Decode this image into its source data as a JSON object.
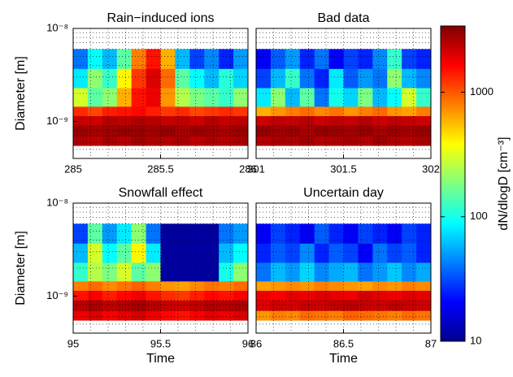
{
  "chart_data": [
    {
      "type": "heatmap",
      "title": "Rain−induced ions",
      "ylabel": "Diameter [m]",
      "xlim": [
        285,
        286
      ],
      "xticks": [
        285,
        285.5,
        286
      ],
      "ylim": [
        4e-10,
        1e-08
      ],
      "yscale": "log",
      "yticks": [
        {
          "value": 1e-08,
          "label": "10⁻⁸"
        },
        {
          "value": 1e-09,
          "label": "10⁻⁹"
        }
      ],
      "grid": true,
      "y_edges": [
        5.5e-10,
        7e-10,
        9e-10,
        1.15e-09,
        1.45e-09,
        2.3e-09,
        3.7e-09,
        6e-09
      ],
      "values": [
        [
          2600,
          2400,
          2700,
          2500,
          2800,
          2600,
          2500,
          2700,
          2400,
          2600,
          2500,
          2700
        ],
        [
          2900,
          2700,
          2800,
          3000,
          2900,
          2800,
          3000,
          2700,
          2900,
          2800,
          2700,
          2900
        ],
        [
          2300,
          2200,
          2500,
          2400,
          2600,
          2500,
          2300,
          2400,
          2200,
          2500,
          2300,
          2400
        ],
        [
          1300,
          1100,
          1400,
          1500,
          1600,
          1400,
          1200,
          1300,
          1100,
          1200,
          1300,
          1200
        ],
        [
          300,
          150,
          200,
          600,
          1500,
          1800,
          700,
          250,
          180,
          150,
          120,
          200
        ],
        [
          80,
          200,
          120,
          400,
          1200,
          2000,
          900,
          150,
          90,
          60,
          110,
          70
        ],
        [
          40,
          90,
          60,
          150,
          800,
          1500,
          600,
          60,
          30,
          45,
          25,
          50
        ]
      ]
    },
    {
      "type": "heatmap",
      "title": "Bad data",
      "xlim": [
        301,
        302
      ],
      "xticks": [
        301,
        301.5,
        302
      ],
      "ylim": [
        4e-10,
        1e-08
      ],
      "yscale": "log",
      "grid": true,
      "y_edges": [
        5.5e-10,
        7e-10,
        9e-10,
        1.15e-09,
        1.45e-09,
        2.3e-09,
        3.7e-09,
        6e-09
      ],
      "values": [
        [
          2500,
          2700,
          2600,
          2800,
          2500,
          2600,
          2700,
          2500,
          2800,
          2600,
          2500,
          2700
        ],
        [
          3000,
          2800,
          2900,
          2700,
          3000,
          2900,
          2800,
          3000,
          2700,
          2900,
          2800,
          3000
        ],
        [
          2200,
          2400,
          2300,
          2500,
          2200,
          2400,
          2300,
          2500,
          2200,
          2400,
          2300,
          2200
        ],
        [
          600,
          700,
          800,
          900,
          750,
          850,
          700,
          800,
          900,
          700,
          650,
          800
        ],
        [
          80,
          200,
          60,
          150,
          40,
          100,
          70,
          180,
          60,
          90,
          300,
          120
        ],
        [
          30,
          60,
          120,
          40,
          25,
          80,
          35,
          50,
          40,
          200,
          60,
          45
        ],
        [
          20,
          35,
          50,
          25,
          40,
          20,
          30,
          25,
          45,
          120,
          30,
          25
        ]
      ]
    },
    {
      "type": "heatmap",
      "title": "Snowfall effect",
      "ylabel": "Diameter [m]",
      "xlabel": "Time",
      "xlim": [
        95,
        96
      ],
      "xticks": [
        95,
        95.5,
        96
      ],
      "ylim": [
        4e-10,
        1e-08
      ],
      "yscale": "log",
      "yticks": [
        {
          "value": 1e-08,
          "label": "10⁻⁸"
        },
        {
          "value": 1e-09,
          "label": "10⁻⁹"
        }
      ],
      "grid": true,
      "y_edges": [
        5.5e-10,
        7e-10,
        9e-10,
        1.15e-09,
        1.45e-09,
        2.3e-09,
        3.7e-09,
        6e-09
      ],
      "values": [
        [
          1800,
          2000,
          1700,
          1900,
          2100,
          1800,
          1600,
          1500,
          1700,
          1900,
          1800,
          2000
        ],
        [
          2500,
          2700,
          2400,
          2600,
          2800,
          2500,
          2300,
          2200,
          2400,
          2600,
          2500,
          2700
        ],
        [
          1500,
          1700,
          1400,
          1600,
          1800,
          1500,
          1300,
          1200,
          1400,
          1600,
          1500,
          1700
        ],
        [
          800,
          900,
          750,
          850,
          950,
          800,
          700,
          650,
          750,
          850,
          800,
          900
        ],
        [
          120,
          250,
          180,
          300,
          150,
          200,
          12,
          12,
          12,
          12,
          100,
          200
        ],
        [
          60,
          300,
          90,
          150,
          400,
          80,
          12,
          12,
          12,
          12,
          60,
          90
        ],
        [
          30,
          150,
          50,
          80,
          200,
          40,
          12,
          12,
          12,
          12,
          40,
          50
        ]
      ]
    },
    {
      "type": "heatmap",
      "title": "Uncertain day",
      "xlabel": "Time",
      "xlim": [
        86,
        87
      ],
      "xticks": [
        86,
        86.5,
        87
      ],
      "ylim": [
        4e-10,
        1e-08
      ],
      "yscale": "log",
      "grid": true,
      "y_edges": [
        5.5e-10,
        7e-10,
        9e-10,
        1.15e-09,
        1.45e-09,
        2.3e-09,
        3.7e-09,
        6e-09
      ],
      "values": [
        [
          700,
          800,
          750,
          900,
          850,
          800,
          950,
          900,
          850,
          800,
          900,
          850
        ],
        [
          2000,
          2200,
          2100,
          2300,
          2200,
          2400,
          2500,
          2300,
          2200,
          2400,
          2300,
          2200
        ],
        [
          1800,
          1700,
          1900,
          1800,
          2000,
          1900,
          1800,
          2100,
          1900,
          1800,
          2000,
          1900
        ],
        [
          650,
          700,
          750,
          700,
          800,
          750,
          700,
          650,
          750,
          700,
          800,
          750
        ],
        [
          40,
          60,
          50,
          70,
          45,
          55,
          60,
          40,
          50,
          65,
          45,
          55
        ],
        [
          25,
          35,
          30,
          45,
          25,
          35,
          30,
          20,
          40,
          30,
          35,
          25
        ],
        [
          20,
          30,
          25,
          20,
          35,
          25,
          20,
          30,
          25,
          20,
          30,
          25
        ]
      ]
    }
  ],
  "colorbar": {
    "label": "dN/dlogD [cm⁻³]",
    "scale": "log",
    "colormap": "jet",
    "lim": [
      10,
      3400
    ],
    "ticks": [
      10,
      100,
      1000
    ]
  }
}
